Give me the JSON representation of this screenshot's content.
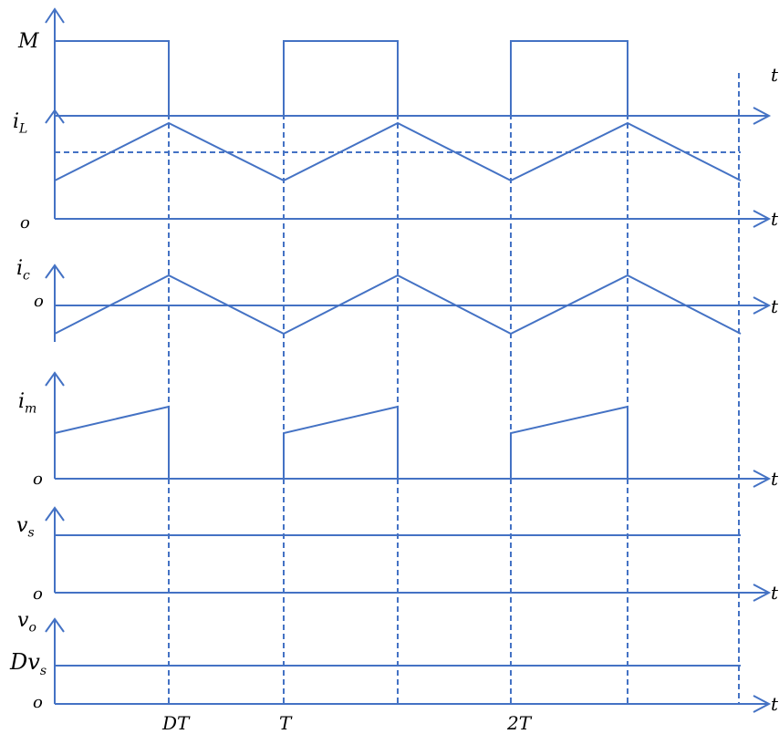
{
  "labels": {
    "M": "M",
    "iL_base": "i",
    "iL_sub": "L",
    "ic_base": "i",
    "ic_sub": "c",
    "im_base": "i",
    "im_sub": "m",
    "vs_base": "v",
    "vs_sub": "s",
    "vo_base": "v",
    "vo_sub": "o",
    "dvs_D": "D",
    "dvs_v": "v",
    "dvs_sub": "s",
    "origin": "o",
    "time": "t",
    "DT": "DT",
    "T": "T",
    "twoT": "2T"
  },
  "colors": {
    "waveform": "#4472c4",
    "text": "#000000"
  }
}
